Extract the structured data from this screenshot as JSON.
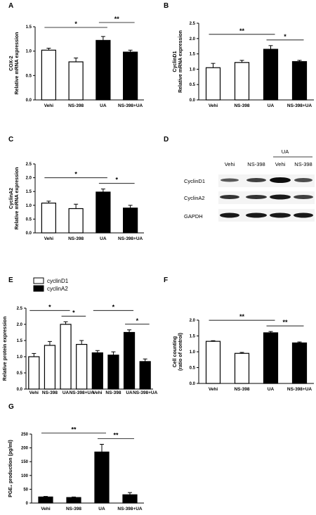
{
  "panels": {
    "A": "A",
    "B": "B",
    "C": "C",
    "D": "D",
    "E": "E",
    "F": "F",
    "G": "G"
  },
  "chart_data": [
    {
      "id": "A",
      "type": "bar",
      "ylabel_lines": [
        "COX-2",
        "Relative mRNA expression"
      ],
      "categories": [
        "Vehi",
        "NS-398",
        "UA",
        "NS-398+UA"
      ],
      "values": [
        1.02,
        0.78,
        1.22,
        0.98
      ],
      "errors": [
        0.04,
        0.08,
        0.08,
        0.04
      ],
      "fills": [
        "white",
        "white",
        "black",
        "black"
      ],
      "ylim": [
        0,
        1.5
      ],
      "yticks": [
        "0.0",
        "0.5",
        "1.0",
        "1.5"
      ],
      "ytick_values": [
        0,
        0.5,
        1.0,
        1.5
      ],
      "significance": [
        {
          "from": 0,
          "to": 2,
          "label": "*"
        },
        {
          "from": 2,
          "to": 3,
          "label": "**"
        }
      ]
    },
    {
      "id": "B",
      "type": "bar",
      "ylabel_lines": [
        "CyclinD1",
        "Relative mRNA expression"
      ],
      "categories": [
        "Vehi",
        "NS-398",
        "UA",
        "NS-398+UA"
      ],
      "values": [
        1.05,
        1.22,
        1.65,
        1.25
      ],
      "errors": [
        0.14,
        0.07,
        0.12,
        0.04
      ],
      "fills": [
        "white",
        "white",
        "black",
        "black"
      ],
      "ylim": [
        0,
        2.5
      ],
      "yticks": [
        "0.0",
        "0.5",
        "1.0",
        "1.5",
        "2.0",
        "2.5"
      ],
      "ytick_values": [
        0,
        0.5,
        1.0,
        1.5,
        2.0,
        2.5
      ],
      "significance": [
        {
          "from": 0,
          "to": 2,
          "label": "**"
        },
        {
          "from": 2,
          "to": 3,
          "label": "*"
        }
      ]
    },
    {
      "id": "C",
      "type": "bar",
      "ylabel_lines": [
        "CyclinA2",
        "Relative mRNA expression"
      ],
      "categories": [
        "Vehi",
        "NS-398",
        "UA",
        "NS-398+UA"
      ],
      "values": [
        1.08,
        0.88,
        1.48,
        0.9
      ],
      "errors": [
        0.07,
        0.16,
        0.11,
        0.1
      ],
      "fills": [
        "white",
        "white",
        "black",
        "black"
      ],
      "ylim": [
        0,
        2.5
      ],
      "yticks": [
        "0.0",
        "0.5",
        "1.0",
        "1.5",
        "2.0",
        "2.5"
      ],
      "ytick_values": [
        0,
        0.5,
        1.0,
        1.5,
        2.0,
        2.5
      ],
      "significance": [
        {
          "from": 0,
          "to": 2,
          "label": "*"
        },
        {
          "from": 2,
          "to": 3,
          "label": "*"
        }
      ]
    },
    {
      "id": "E",
      "type": "bar",
      "ylabel_lines": [
        "Relative protein expression"
      ],
      "categories": [
        "Vehi",
        "NS-398",
        "UA",
        "NS-398+UA",
        "Vehi",
        "NS-398",
        "UA",
        "NS-398+UA"
      ],
      "values": [
        1.0,
        1.35,
        2.0,
        1.38,
        1.12,
        1.05,
        1.75,
        0.85
      ],
      "errors": [
        0.1,
        0.12,
        0.08,
        0.12,
        0.07,
        0.1,
        0.08,
        0.08
      ],
      "fills": [
        "white",
        "white",
        "white",
        "white",
        "black",
        "black",
        "black",
        "black"
      ],
      "legend": [
        {
          "name": "cyclinD1",
          "fill": "white"
        },
        {
          "name": "cyclinA2",
          "fill": "black"
        }
      ],
      "ylim": [
        0,
        2.5
      ],
      "yticks": [
        "0.0",
        "0.5",
        "1.0",
        "1.5",
        "2.0",
        "2.5"
      ],
      "ytick_values": [
        0,
        0.5,
        1.0,
        1.5,
        2.0,
        2.5
      ],
      "significance": [
        {
          "from": 0,
          "to": 2,
          "label": "*"
        },
        {
          "from": 2,
          "to": 3,
          "label": "*"
        },
        {
          "from": 4,
          "to": 6,
          "label": "*"
        },
        {
          "from": 6,
          "to": 7,
          "label": "*"
        }
      ]
    },
    {
      "id": "F",
      "type": "bar",
      "ylabel_lines": [
        "Cell counting",
        "(ratio of control)"
      ],
      "categories": [
        "Vehi",
        "NS-398",
        "UA",
        "NS-398+UA"
      ],
      "values": [
        1.33,
        0.95,
        1.6,
        1.28
      ],
      "errors": [
        0.02,
        0.03,
        0.04,
        0.03
      ],
      "fills": [
        "white",
        "white",
        "black",
        "black"
      ],
      "ylim": [
        0,
        2.0
      ],
      "yticks": [
        "0.0",
        "0.5",
        "1.0",
        "1.5",
        "2.0"
      ],
      "ytick_values": [
        0,
        0.5,
        1.0,
        1.5,
        2.0
      ],
      "significance": [
        {
          "from": 0,
          "to": 2,
          "label": "**"
        },
        {
          "from": 2,
          "to": 3,
          "label": "**"
        }
      ]
    },
    {
      "id": "G",
      "type": "bar",
      "ylabel_lines": [
        "PGE₂ production (pg/ml)"
      ],
      "categories": [
        "Vehi",
        "NS-398",
        "UA",
        "NS-398+UA"
      ],
      "values": [
        22,
        20,
        185,
        30
      ],
      "errors": [
        2,
        2,
        28,
        8
      ],
      "fills": [
        "black",
        "black",
        "black",
        "black"
      ],
      "ylim": [
        0,
        250
      ],
      "yticks": [
        "0",
        "50",
        "100",
        "150",
        "200",
        "250"
      ],
      "ytick_values": [
        0,
        50,
        100,
        150,
        200,
        250
      ],
      "significance": [
        {
          "from": 0,
          "to": 2,
          "label": "**"
        },
        {
          "from": 2,
          "to": 3,
          "label": "**"
        }
      ]
    }
  ],
  "blot": {
    "group_label": "UA",
    "lanes": [
      "Vehi",
      "NS-398",
      "Vehi",
      "NS-398"
    ],
    "rows": [
      "CyclinD1",
      "CyclinA2",
      "GAPDH"
    ]
  }
}
